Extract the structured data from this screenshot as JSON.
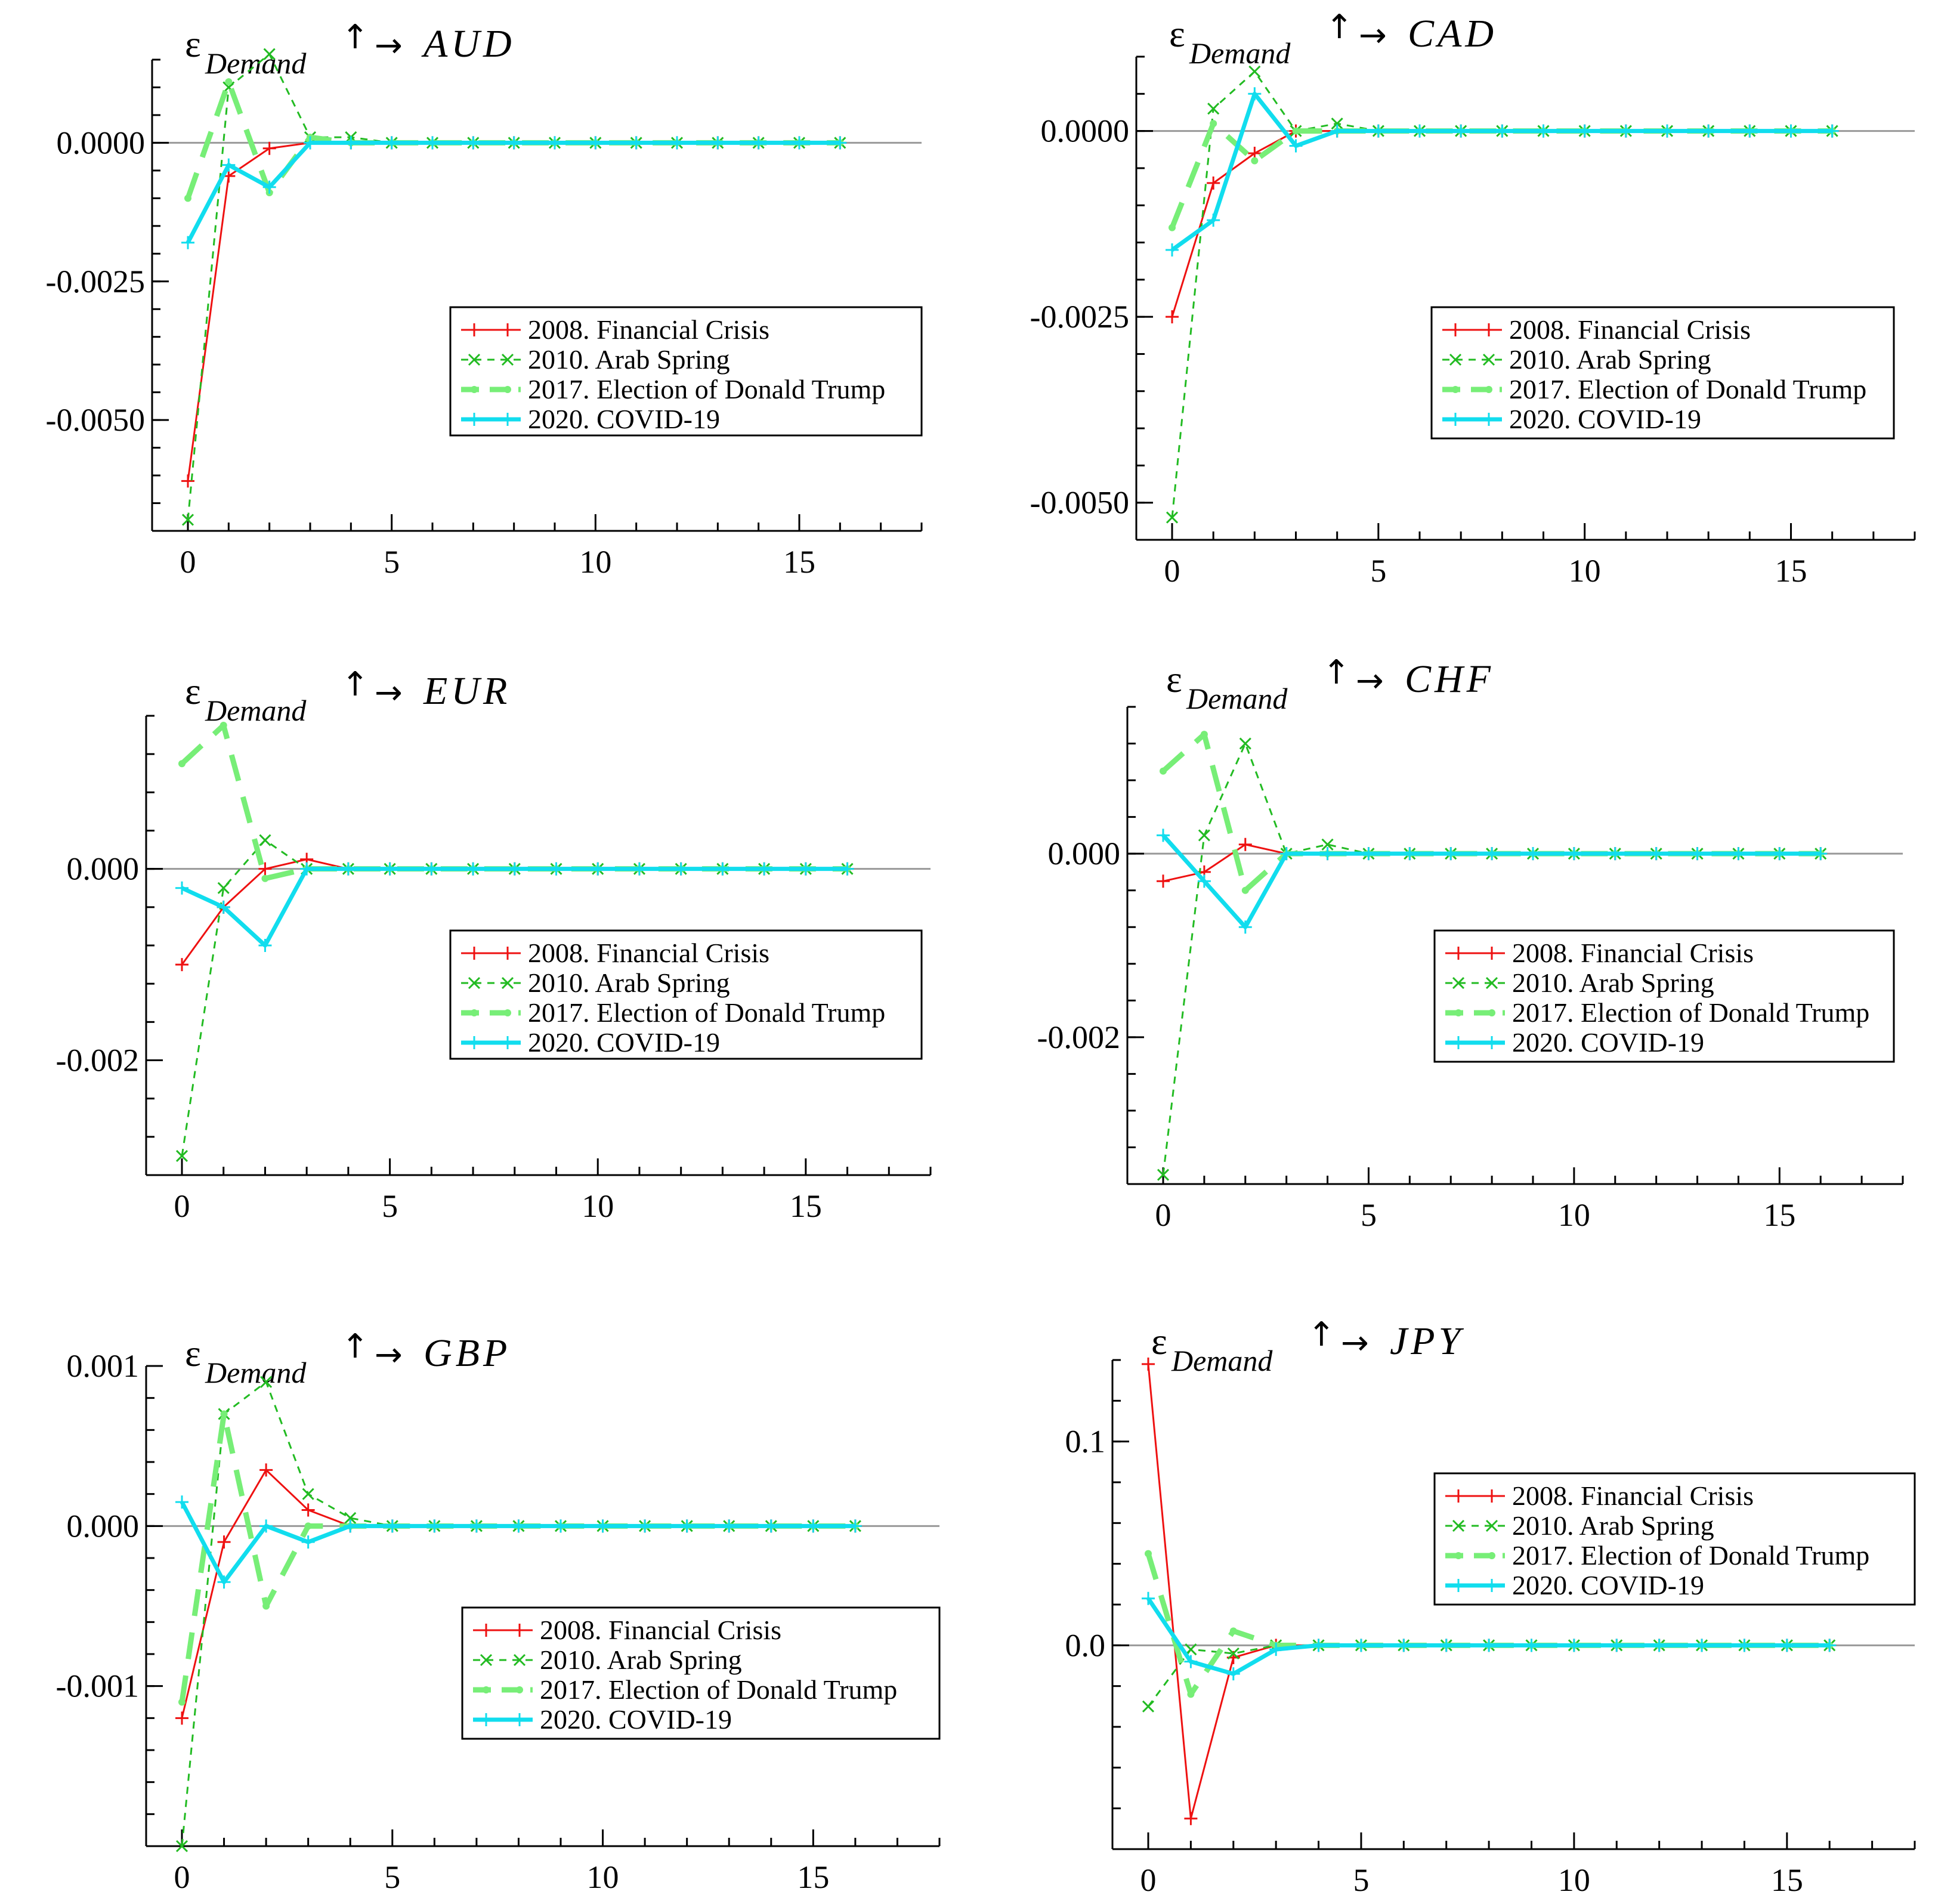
{
  "figure": {
    "title_parts": {
      "epsilon": "ε",
      "subscript": "Demand",
      "up": "↑",
      "arrow": "→"
    },
    "colors": {
      "crisis2008": "#ee1111",
      "arab2010": "#22bb22",
      "trump2017": "#77ee77",
      "covid2020": "#11ddee",
      "zeroline": "#999999",
      "axis": "#000000"
    }
  },
  "chart_data": [
    {
      "type": "line",
      "currency": "AUD",
      "xlim": [
        0,
        18
      ],
      "ylim": [
        -0.007,
        0.0015
      ],
      "x_ticks": [
        0,
        5,
        10,
        15
      ],
      "x_tick_labels": [
        "0",
        "5",
        "10",
        "15"
      ],
      "y_ticks": [
        0,
        -0.0025,
        -0.005
      ],
      "y_tick_labels": [
        "0.0000",
        "-0.0025",
        "-0.0050"
      ],
      "x": [
        0,
        1,
        2,
        3,
        4,
        5,
        6,
        7,
        8,
        9,
        10,
        11,
        12,
        13,
        14,
        15,
        16
      ],
      "series": [
        {
          "name": "2008. Financial Crisis",
          "values": [
            -0.0061,
            -0.0006,
            -0.0001,
            0.0,
            0.0,
            0,
            0,
            0,
            0,
            0,
            0,
            0,
            0,
            0,
            0,
            0,
            0
          ]
        },
        {
          "name": "2010. Arab Spring",
          "values": [
            -0.0068,
            0.001,
            0.0016,
            0.0001,
            0.0001,
            0,
            0,
            0,
            0,
            0,
            0,
            0,
            0,
            0,
            0,
            0,
            0
          ]
        },
        {
          "name": "2017. Election of Donald Trump",
          "values": [
            -0.001,
            0.0011,
            -0.0009,
            0.0001,
            0.0,
            0,
            0,
            0,
            0,
            0,
            0,
            0,
            0,
            0,
            0,
            0,
            0
          ]
        },
        {
          "name": "2020. COVID-19",
          "values": [
            -0.0018,
            -0.0004,
            -0.0008,
            0.0,
            0.0,
            0,
            0,
            0,
            0,
            0,
            0,
            0,
            0,
            0,
            0,
            0,
            0
          ]
        }
      ]
    },
    {
      "type": "line",
      "currency": "CAD",
      "xlim": [
        0,
        18
      ],
      "ylim": [
        -0.0055,
        0.001
      ],
      "x_ticks": [
        0,
        5,
        10,
        15
      ],
      "x_tick_labels": [
        "0",
        "5",
        "10",
        "15"
      ],
      "y_ticks": [
        0,
        -0.0025,
        -0.005
      ],
      "y_tick_labels": [
        "0.0000",
        "-0.0025",
        "-0.0050"
      ],
      "x": [
        0,
        1,
        2,
        3,
        4,
        5,
        6,
        7,
        8,
        9,
        10,
        11,
        12,
        13,
        14,
        15,
        16
      ],
      "series": [
        {
          "name": "2008. Financial Crisis",
          "values": [
            -0.0025,
            -0.0007,
            -0.0003,
            0.0,
            0.0,
            0,
            0,
            0,
            0,
            0,
            0,
            0,
            0,
            0,
            0,
            0,
            0
          ]
        },
        {
          "name": "2010. Arab Spring",
          "values": [
            -0.0052,
            0.0003,
            0.0008,
            0.0,
            0.0001,
            0,
            0,
            0,
            0,
            0,
            0,
            0,
            0,
            0,
            0,
            0,
            0
          ]
        },
        {
          "name": "2017. Election of Donald Trump",
          "values": [
            -0.0013,
            0.0001,
            -0.0004,
            0.0,
            0.0,
            0,
            0,
            0,
            0,
            0,
            0,
            0,
            0,
            0,
            0,
            0,
            0
          ]
        },
        {
          "name": "2020. COVID-19",
          "values": [
            -0.0016,
            -0.0012,
            0.0005,
            -0.0002,
            0.0,
            0,
            0,
            0,
            0,
            0,
            0,
            0,
            0,
            0,
            0,
            0,
            0
          ]
        }
      ]
    },
    {
      "type": "line",
      "currency": "EUR",
      "xlim": [
        0,
        18
      ],
      "ylim": [
        -0.0032,
        0.0016
      ],
      "x_ticks": [
        0,
        5,
        10,
        15
      ],
      "x_tick_labels": [
        "0",
        "5",
        "10",
        "15"
      ],
      "y_ticks": [
        0,
        -0.002
      ],
      "y_tick_labels": [
        "0.000",
        "-0.002"
      ],
      "x": [
        0,
        1,
        2,
        3,
        4,
        5,
        6,
        7,
        8,
        9,
        10,
        11,
        12,
        13,
        14,
        15,
        16
      ],
      "series": [
        {
          "name": "2008. Financial Crisis",
          "values": [
            -0.001,
            -0.0004,
            0.0,
            0.0001,
            0.0,
            0,
            0,
            0,
            0,
            0,
            0,
            0,
            0,
            0,
            0,
            0,
            0
          ]
        },
        {
          "name": "2010. Arab Spring",
          "values": [
            -0.003,
            -0.0002,
            0.0003,
            0.0,
            0.0,
            0,
            0,
            0,
            0,
            0,
            0,
            0,
            0,
            0,
            0,
            0,
            0
          ]
        },
        {
          "name": "2017. Election of Donald Trump",
          "values": [
            0.0011,
            0.0015,
            -0.0001,
            0.0,
            0.0,
            0,
            0,
            0,
            0,
            0,
            0,
            0,
            0,
            0,
            0,
            0,
            0
          ]
        },
        {
          "name": "2020. COVID-19",
          "values": [
            -0.0002,
            -0.0004,
            -0.0008,
            0.0,
            0.0,
            0,
            0,
            0,
            0,
            0,
            0,
            0,
            0,
            0,
            0,
            0,
            0
          ]
        }
      ]
    },
    {
      "type": "line",
      "currency": "CHF",
      "xlim": [
        0,
        18
      ],
      "ylim": [
        -0.0036,
        0.0016
      ],
      "x_ticks": [
        0,
        5,
        10,
        15
      ],
      "x_tick_labels": [
        "0",
        "5",
        "10",
        "15"
      ],
      "y_ticks": [
        0,
        -0.002
      ],
      "y_tick_labels": [
        "0.000",
        "-0.002"
      ],
      "x": [
        0,
        1,
        2,
        3,
        4,
        5,
        6,
        7,
        8,
        9,
        10,
        11,
        12,
        13,
        14,
        15,
        16
      ],
      "series": [
        {
          "name": "2008. Financial Crisis",
          "values": [
            -0.0003,
            -0.0002,
            0.0001,
            0.0,
            0.0,
            0,
            0,
            0,
            0,
            0,
            0,
            0,
            0,
            0,
            0,
            0,
            0
          ]
        },
        {
          "name": "2010. Arab Spring",
          "values": [
            -0.0035,
            0.0002,
            0.0012,
            0.0,
            0.0001,
            0,
            0,
            0,
            0,
            0,
            0,
            0,
            0,
            0,
            0,
            0,
            0
          ]
        },
        {
          "name": "2017. Election of Donald Trump",
          "values": [
            0.0009,
            0.0013,
            -0.0004,
            0.0,
            0.0,
            0,
            0,
            0,
            0,
            0,
            0,
            0,
            0,
            0,
            0,
            0,
            0
          ]
        },
        {
          "name": "2020. COVID-19",
          "values": [
            0.0002,
            -0.0003,
            -0.0008,
            0.0,
            0.0,
            0,
            0,
            0,
            0,
            0,
            0,
            0,
            0,
            0,
            0,
            0,
            0
          ]
        }
      ]
    },
    {
      "type": "line",
      "currency": "GBP",
      "xlim": [
        0,
        18
      ],
      "ylim": [
        -0.002,
        0.001
      ],
      "x_ticks": [
        0,
        5,
        10,
        15
      ],
      "x_tick_labels": [
        "0",
        "5",
        "10",
        "15"
      ],
      "y_ticks": [
        0.001,
        0,
        -0.001
      ],
      "y_tick_labels": [
        "0.001",
        "0.000",
        "-0.001"
      ],
      "x": [
        0,
        1,
        2,
        3,
        4,
        5,
        6,
        7,
        8,
        9,
        10,
        11,
        12,
        13,
        14,
        15,
        16
      ],
      "series": [
        {
          "name": "2008. Financial Crisis",
          "values": [
            -0.0012,
            -0.0001,
            0.00035,
            0.0001,
            0.0,
            0,
            0,
            0,
            0,
            0,
            0,
            0,
            0,
            0,
            0,
            0,
            0
          ]
        },
        {
          "name": "2010. Arab Spring",
          "values": [
            -0.002,
            0.0007,
            0.0009,
            0.0002,
            5e-05,
            0,
            0,
            0,
            0,
            0,
            0,
            0,
            0,
            0,
            0,
            0,
            0
          ]
        },
        {
          "name": "2017. Election of Donald Trump",
          "values": [
            -0.0011,
            0.0007,
            -0.0005,
            0.0,
            0.0,
            0,
            0,
            0,
            0,
            0,
            0,
            0,
            0,
            0,
            0,
            0,
            0
          ]
        },
        {
          "name": "2020. COVID-19",
          "values": [
            0.00015,
            -0.00035,
            0.0,
            -0.0001,
            0.0,
            0,
            0,
            0,
            0,
            0,
            0,
            0,
            0,
            0,
            0,
            0,
            0
          ]
        }
      ]
    },
    {
      "type": "line",
      "currency": "JPY",
      "xlim": [
        0,
        18
      ],
      "ylim": [
        -0.1,
        0.14
      ],
      "x_ticks": [
        0,
        5,
        10,
        15
      ],
      "x_tick_labels": [
        "0",
        "5",
        "10",
        "15"
      ],
      "y_ticks": [
        0.1,
        0
      ],
      "y_tick_labels": [
        "0.1",
        "0.0"
      ],
      "x": [
        0,
        1,
        2,
        3,
        4,
        5,
        6,
        7,
        8,
        9,
        10,
        11,
        12,
        13,
        14,
        15,
        16
      ],
      "series": [
        {
          "name": "2008. Financial Crisis",
          "values": [
            0.138,
            -0.085,
            -0.006,
            0.0,
            0.0,
            0,
            0,
            0,
            0,
            0,
            0,
            0,
            0,
            0,
            0,
            0,
            0
          ]
        },
        {
          "name": "2010. Arab Spring",
          "values": [
            -0.03,
            -0.002,
            -0.004,
            0.0,
            0.0,
            0,
            0,
            0,
            0,
            0,
            0,
            0,
            0,
            0,
            0,
            0,
            0
          ]
        },
        {
          "name": "2017. Election of Donald Trump",
          "values": [
            0.045,
            -0.024,
            0.007,
            0.0,
            0.0,
            0,
            0,
            0,
            0,
            0,
            0,
            0,
            0,
            0,
            0,
            0,
            0
          ]
        },
        {
          "name": "2020. COVID-19",
          "values": [
            0.023,
            -0.008,
            -0.014,
            -0.002,
            0.0,
            0,
            0,
            0,
            0,
            0,
            0,
            0,
            0,
            0,
            0,
            0,
            0
          ]
        }
      ]
    }
  ]
}
